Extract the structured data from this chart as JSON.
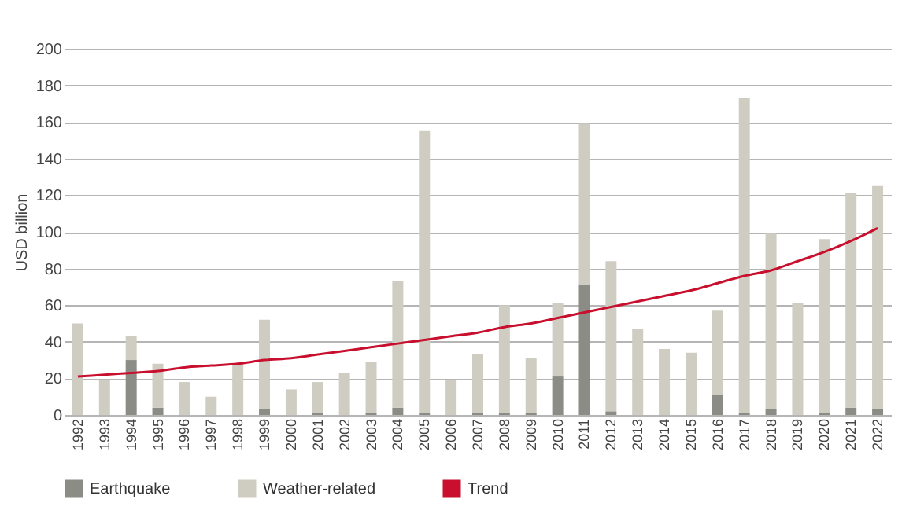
{
  "chart_data": {
    "type": "bar",
    "stacked": true,
    "ylabel": "USD billion",
    "categories": [
      "1992",
      "1993",
      "1994",
      "1995",
      "1996",
      "1997",
      "1998",
      "1999",
      "2000",
      "2001",
      "2002",
      "2003",
      "2004",
      "2005",
      "2006",
      "2007",
      "2008",
      "2009",
      "2010",
      "2011",
      "2012",
      "2013",
      "2014",
      "2015",
      "2016",
      "2017",
      "2018",
      "2019",
      "2020",
      "2021",
      "2022"
    ],
    "series": [
      {
        "name": "Earthquake",
        "color": "#8c8c87",
        "values": [
          0,
          0,
          30,
          4,
          0,
          0,
          0,
          3,
          0,
          1,
          0,
          1,
          4,
          1,
          0,
          1,
          1,
          1,
          21,
          71,
          2,
          0,
          0,
          0,
          11,
          1,
          3,
          0,
          1,
          4,
          3
        ]
      },
      {
        "name": "Weather-related",
        "color": "#cfcdc2",
        "values": [
          50,
          19,
          13,
          24,
          18,
          10,
          28,
          49,
          14,
          17,
          23,
          28,
          69,
          154,
          19,
          32,
          59,
          30,
          40,
          88,
          82,
          47,
          36,
          34,
          46,
          172,
          96,
          61,
          95,
          117,
          122
        ]
      },
      {
        "name": "Trend",
        "type": "line",
        "color": "#c8102e",
        "values": [
          21,
          22,
          23,
          24,
          26,
          27,
          28,
          30,
          31,
          33,
          35,
          37,
          39,
          41,
          43,
          45,
          48,
          50,
          53,
          56,
          59,
          62,
          65,
          68,
          72,
          76,
          79,
          84,
          89,
          95,
          102
        ]
      }
    ],
    "ylim": [
      0,
      200
    ],
    "yticks": [
      0,
      20,
      40,
      60,
      80,
      100,
      120,
      140,
      160,
      180,
      200
    ],
    "grid": "y",
    "legend": "bottom left"
  }
}
